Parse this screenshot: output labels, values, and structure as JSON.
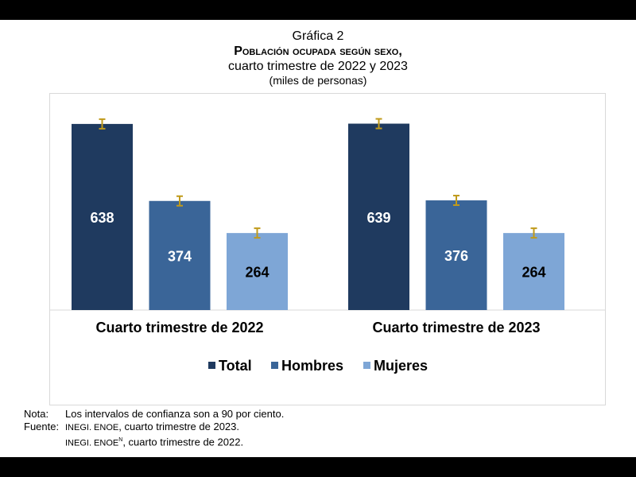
{
  "header": {
    "label": "Gráfica 2",
    "title": "Población ocupada según sexo,",
    "subtitle": "cuarto trimestre de 2022 y 2023",
    "units": "(miles de personas)"
  },
  "chart_data": {
    "type": "bar",
    "categories": [
      "Cuarto trimestre de 2022",
      "Cuarto trimestre de 2023"
    ],
    "series": [
      {
        "name": "Total",
        "values": [
          638,
          639
        ],
        "color": "#1f3a5f"
      },
      {
        "name": "Hombres",
        "values": [
          374,
          376
        ],
        "color": "#3a6598"
      },
      {
        "name": "Mujeres",
        "values": [
          264,
          264
        ],
        "color": "#7ea6d6"
      }
    ],
    "error_bars": true,
    "error_bar_color": "#c09a1a",
    "ylim": [
      0,
      744
    ],
    "grid": false,
    "legend": "bottom",
    "data_labels": true
  },
  "notes": {
    "nota_label": "Nota:",
    "nota": "Los intervalos de confianza son a 90 por ciento.",
    "fuente_label": "Fuente:",
    "src1_org": "INEGI. ENOE",
    "src1": ", cuarto trimestre de 2023.",
    "src2_org": "INEGI. ENOE",
    "src2_sup": "N",
    "src2": ", cuarto trimestre de 2022."
  }
}
